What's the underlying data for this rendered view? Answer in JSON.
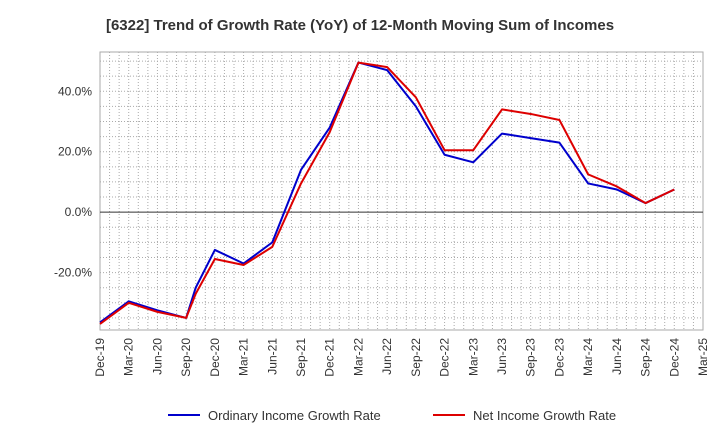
{
  "chart_data": {
    "type": "line",
    "title": "[6322]  Trend of Growth Rate (YoY) of 12-Month Moving Sum of Incomes",
    "xlabel": "",
    "ylabel": "",
    "x": [
      "Dec-19",
      "Mar-20",
      "Jun-20",
      "Sep-20",
      "Dec-20",
      "Mar-21",
      "Jun-21",
      "Sep-21",
      "Dec-21",
      "Mar-22",
      "Jun-22",
      "Sep-22",
      "Dec-22",
      "Mar-23",
      "Jun-23",
      "Sep-23",
      "Dec-23",
      "Mar-24",
      "Jun-24",
      "Sep-24",
      "Dec-24",
      "Mar-25"
    ],
    "ylim": [
      -39,
      53
    ],
    "yticks": [
      -20,
      0,
      20,
      40
    ],
    "ytick_labels": [
      "-20.0%",
      "0.0%",
      "20.0%",
      "40.0%"
    ],
    "grid": true,
    "legend_position": "bottom",
    "series": [
      {
        "name": "Ordinary Income Growth Rate",
        "color": "#0000cc",
        "points": [
          [
            "Dec-19",
            -36.5
          ],
          [
            "Mar-20",
            -29.5
          ],
          [
            "Jun-20",
            -32.5
          ],
          [
            "Sep-20",
            -35.0
          ],
          [
            "Oct-20",
            -25.0
          ],
          [
            "Dec-20",
            -12.5
          ],
          [
            "Mar-21",
            -17.0
          ],
          [
            "Jun-21",
            -10.0
          ],
          [
            "Sep-21",
            14.0
          ],
          [
            "Dec-21",
            28.0
          ],
          [
            "Mar-22",
            49.5
          ],
          [
            "Jun-22",
            47.0
          ],
          [
            "Sep-22",
            35.0
          ],
          [
            "Dec-22",
            19.0
          ],
          [
            "Mar-23",
            16.5
          ],
          [
            "Jun-23",
            26.0
          ],
          [
            "Sep-23",
            24.5
          ],
          [
            "Dec-23",
            23.0
          ],
          [
            "Mar-24",
            9.5
          ],
          [
            "Jun-24",
            7.5
          ],
          [
            "Sep-24",
            3.0
          ],
          [
            "Dec-24",
            7.5
          ]
        ]
      },
      {
        "name": "Net Income Growth Rate",
        "color": "#dd0000",
        "points": [
          [
            "Dec-19",
            -37.0
          ],
          [
            "Mar-20",
            -30.0
          ],
          [
            "Jun-20",
            -33.0
          ],
          [
            "Sep-20",
            -35.0
          ],
          [
            "Oct-20",
            -27.0
          ],
          [
            "Dec-20",
            -15.5
          ],
          [
            "Mar-21",
            -17.5
          ],
          [
            "Jun-21",
            -11.5
          ],
          [
            "Sep-21",
            9.5
          ],
          [
            "Dec-21",
            26.5
          ],
          [
            "Mar-22",
            49.5
          ],
          [
            "Jun-22",
            48.0
          ],
          [
            "Sep-22",
            38.0
          ],
          [
            "Dec-22",
            20.5
          ],
          [
            "Mar-23",
            20.5
          ],
          [
            "Jun-23",
            34.0
          ],
          [
            "Sep-23",
            32.5
          ],
          [
            "Dec-23",
            30.5
          ],
          [
            "Mar-24",
            12.5
          ],
          [
            "Jun-24",
            8.5
          ],
          [
            "Sep-24",
            3.0
          ],
          [
            "Dec-24",
            7.5
          ]
        ]
      }
    ]
  },
  "colors": {
    "grid": "#aaaaaa",
    "zero_line": "#333333",
    "frame": "#aaaaaa",
    "text": "#333333"
  }
}
